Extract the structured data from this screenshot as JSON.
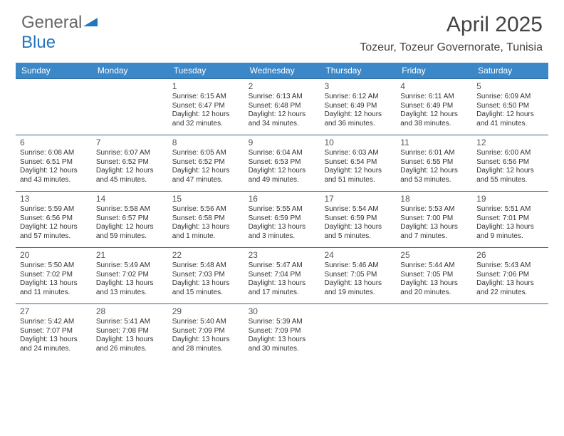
{
  "logo": {
    "text1": "General",
    "text2": "Blue"
  },
  "title": "April 2025",
  "location": "Tozeur, Tozeur Governorate, Tunisia",
  "colors": {
    "header_bg": "#3b87c8",
    "border": "#2c6aa0",
    "text": "#333333",
    "title_text": "#444444"
  },
  "weekdays": [
    "Sunday",
    "Monday",
    "Tuesday",
    "Wednesday",
    "Thursday",
    "Friday",
    "Saturday"
  ],
  "weeks": [
    [
      {
        "n": "",
        "sr": "",
        "ss": "",
        "dl1": "",
        "dl2": ""
      },
      {
        "n": "",
        "sr": "",
        "ss": "",
        "dl1": "",
        "dl2": ""
      },
      {
        "n": "1",
        "sr": "Sunrise: 6:15 AM",
        "ss": "Sunset: 6:47 PM",
        "dl1": "Daylight: 12 hours",
        "dl2": "and 32 minutes."
      },
      {
        "n": "2",
        "sr": "Sunrise: 6:13 AM",
        "ss": "Sunset: 6:48 PM",
        "dl1": "Daylight: 12 hours",
        "dl2": "and 34 minutes."
      },
      {
        "n": "3",
        "sr": "Sunrise: 6:12 AM",
        "ss": "Sunset: 6:49 PM",
        "dl1": "Daylight: 12 hours",
        "dl2": "and 36 minutes."
      },
      {
        "n": "4",
        "sr": "Sunrise: 6:11 AM",
        "ss": "Sunset: 6:49 PM",
        "dl1": "Daylight: 12 hours",
        "dl2": "and 38 minutes."
      },
      {
        "n": "5",
        "sr": "Sunrise: 6:09 AM",
        "ss": "Sunset: 6:50 PM",
        "dl1": "Daylight: 12 hours",
        "dl2": "and 41 minutes."
      }
    ],
    [
      {
        "n": "6",
        "sr": "Sunrise: 6:08 AM",
        "ss": "Sunset: 6:51 PM",
        "dl1": "Daylight: 12 hours",
        "dl2": "and 43 minutes."
      },
      {
        "n": "7",
        "sr": "Sunrise: 6:07 AM",
        "ss": "Sunset: 6:52 PM",
        "dl1": "Daylight: 12 hours",
        "dl2": "and 45 minutes."
      },
      {
        "n": "8",
        "sr": "Sunrise: 6:05 AM",
        "ss": "Sunset: 6:52 PM",
        "dl1": "Daylight: 12 hours",
        "dl2": "and 47 minutes."
      },
      {
        "n": "9",
        "sr": "Sunrise: 6:04 AM",
        "ss": "Sunset: 6:53 PM",
        "dl1": "Daylight: 12 hours",
        "dl2": "and 49 minutes."
      },
      {
        "n": "10",
        "sr": "Sunrise: 6:03 AM",
        "ss": "Sunset: 6:54 PM",
        "dl1": "Daylight: 12 hours",
        "dl2": "and 51 minutes."
      },
      {
        "n": "11",
        "sr": "Sunrise: 6:01 AM",
        "ss": "Sunset: 6:55 PM",
        "dl1": "Daylight: 12 hours",
        "dl2": "and 53 minutes."
      },
      {
        "n": "12",
        "sr": "Sunrise: 6:00 AM",
        "ss": "Sunset: 6:56 PM",
        "dl1": "Daylight: 12 hours",
        "dl2": "and 55 minutes."
      }
    ],
    [
      {
        "n": "13",
        "sr": "Sunrise: 5:59 AM",
        "ss": "Sunset: 6:56 PM",
        "dl1": "Daylight: 12 hours",
        "dl2": "and 57 minutes."
      },
      {
        "n": "14",
        "sr": "Sunrise: 5:58 AM",
        "ss": "Sunset: 6:57 PM",
        "dl1": "Daylight: 12 hours",
        "dl2": "and 59 minutes."
      },
      {
        "n": "15",
        "sr": "Sunrise: 5:56 AM",
        "ss": "Sunset: 6:58 PM",
        "dl1": "Daylight: 13 hours",
        "dl2": "and 1 minute."
      },
      {
        "n": "16",
        "sr": "Sunrise: 5:55 AM",
        "ss": "Sunset: 6:59 PM",
        "dl1": "Daylight: 13 hours",
        "dl2": "and 3 minutes."
      },
      {
        "n": "17",
        "sr": "Sunrise: 5:54 AM",
        "ss": "Sunset: 6:59 PM",
        "dl1": "Daylight: 13 hours",
        "dl2": "and 5 minutes."
      },
      {
        "n": "18",
        "sr": "Sunrise: 5:53 AM",
        "ss": "Sunset: 7:00 PM",
        "dl1": "Daylight: 13 hours",
        "dl2": "and 7 minutes."
      },
      {
        "n": "19",
        "sr": "Sunrise: 5:51 AM",
        "ss": "Sunset: 7:01 PM",
        "dl1": "Daylight: 13 hours",
        "dl2": "and 9 minutes."
      }
    ],
    [
      {
        "n": "20",
        "sr": "Sunrise: 5:50 AM",
        "ss": "Sunset: 7:02 PM",
        "dl1": "Daylight: 13 hours",
        "dl2": "and 11 minutes."
      },
      {
        "n": "21",
        "sr": "Sunrise: 5:49 AM",
        "ss": "Sunset: 7:02 PM",
        "dl1": "Daylight: 13 hours",
        "dl2": "and 13 minutes."
      },
      {
        "n": "22",
        "sr": "Sunrise: 5:48 AM",
        "ss": "Sunset: 7:03 PM",
        "dl1": "Daylight: 13 hours",
        "dl2": "and 15 minutes."
      },
      {
        "n": "23",
        "sr": "Sunrise: 5:47 AM",
        "ss": "Sunset: 7:04 PM",
        "dl1": "Daylight: 13 hours",
        "dl2": "and 17 minutes."
      },
      {
        "n": "24",
        "sr": "Sunrise: 5:46 AM",
        "ss": "Sunset: 7:05 PM",
        "dl1": "Daylight: 13 hours",
        "dl2": "and 19 minutes."
      },
      {
        "n": "25",
        "sr": "Sunrise: 5:44 AM",
        "ss": "Sunset: 7:05 PM",
        "dl1": "Daylight: 13 hours",
        "dl2": "and 20 minutes."
      },
      {
        "n": "26",
        "sr": "Sunrise: 5:43 AM",
        "ss": "Sunset: 7:06 PM",
        "dl1": "Daylight: 13 hours",
        "dl2": "and 22 minutes."
      }
    ],
    [
      {
        "n": "27",
        "sr": "Sunrise: 5:42 AM",
        "ss": "Sunset: 7:07 PM",
        "dl1": "Daylight: 13 hours",
        "dl2": "and 24 minutes."
      },
      {
        "n": "28",
        "sr": "Sunrise: 5:41 AM",
        "ss": "Sunset: 7:08 PM",
        "dl1": "Daylight: 13 hours",
        "dl2": "and 26 minutes."
      },
      {
        "n": "29",
        "sr": "Sunrise: 5:40 AM",
        "ss": "Sunset: 7:09 PM",
        "dl1": "Daylight: 13 hours",
        "dl2": "and 28 minutes."
      },
      {
        "n": "30",
        "sr": "Sunrise: 5:39 AM",
        "ss": "Sunset: 7:09 PM",
        "dl1": "Daylight: 13 hours",
        "dl2": "and 30 minutes."
      },
      {
        "n": "",
        "sr": "",
        "ss": "",
        "dl1": "",
        "dl2": ""
      },
      {
        "n": "",
        "sr": "",
        "ss": "",
        "dl1": "",
        "dl2": ""
      },
      {
        "n": "",
        "sr": "",
        "ss": "",
        "dl1": "",
        "dl2": ""
      }
    ]
  ]
}
